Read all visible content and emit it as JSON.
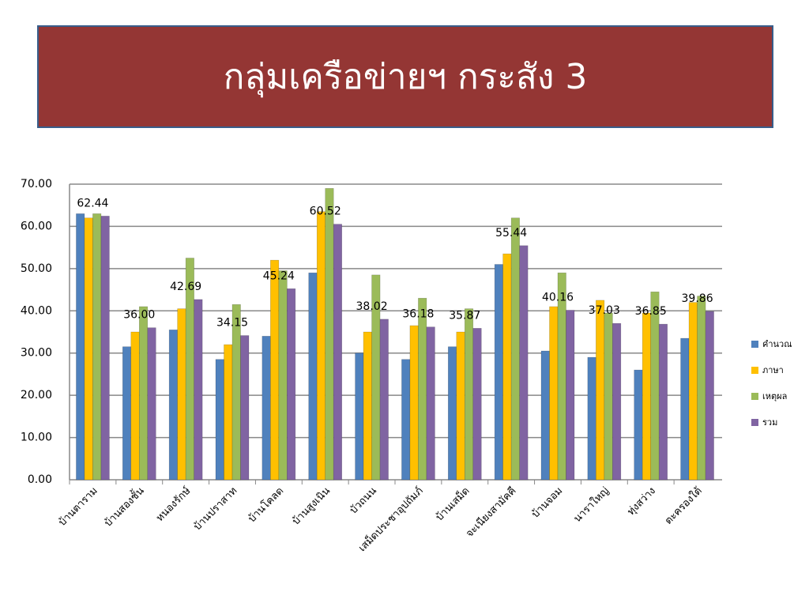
{
  "chart_data": {
    "type": "bar",
    "title": "กลุ่มเครือข่ายฯ กระสัง 3",
    "categories": [
      "บ้านตาราม",
      "บ้านสองชั้น",
      "หนองรักษ์",
      "บ้านปราสาท",
      "บ้านโคลด",
      "บ้านสูงเนิน",
      "บัวถนน",
      "เสม็ดประชาอุปถัมภ์",
      "บ้านเสม็ด",
      "จะเนียงสามัคคี",
      "บ้านจอม",
      "นาราใหญ่",
      "ทุ่งสว่าง",
      "ตะครองใต้"
    ],
    "series": [
      {
        "name": "คำนวณ",
        "color": "#4f81bd",
        "values": [
          63,
          31.5,
          35.5,
          28.5,
          34,
          49,
          30,
          28.5,
          31.5,
          51,
          30.5,
          29,
          26,
          33.5
        ]
      },
      {
        "name": "ภาษา",
        "color": "#ffc000",
        "values": [
          62,
          35,
          40.5,
          32,
          52,
          63.5,
          35,
          36.5,
          35,
          53.5,
          41,
          42.5,
          39.5,
          42
        ]
      },
      {
        "name": "เหตุผล",
        "color": "#9bbb59",
        "values": [
          63,
          41,
          52.5,
          41.5,
          49.5,
          69,
          48.5,
          43,
          40.5,
          62,
          49,
          39.5,
          44.5,
          43.5
        ]
      },
      {
        "name": "รวม",
        "color": "#8064a2",
        "values": [
          62.44,
          36.0,
          42.69,
          34.15,
          45.24,
          60.52,
          38.02,
          36.18,
          35.87,
          55.44,
          40.16,
          37.03,
          36.85,
          39.86
        ],
        "value_labels": [
          "62.44",
          "36.00",
          "42.69",
          "34.15",
          "45.24",
          "60.52",
          "38.02",
          "36.18",
          "35.87",
          "55.44",
          "40.16",
          "37.03",
          "36.85",
          "39.86"
        ]
      }
    ],
    "ylim": [
      0,
      70
    ],
    "yticks": [
      {
        "value": 0,
        "label": "0.00"
      },
      {
        "value": 10,
        "label": "10.00"
      },
      {
        "value": 20,
        "label": "20.00"
      },
      {
        "value": 30,
        "label": "30.00"
      },
      {
        "value": 40,
        "label": "40.00"
      },
      {
        "value": 50,
        "label": "50.00"
      },
      {
        "value": 60,
        "label": "60.00"
      },
      {
        "value": 70,
        "label": "70.00"
      }
    ],
    "grid": true,
    "legend": "right"
  }
}
